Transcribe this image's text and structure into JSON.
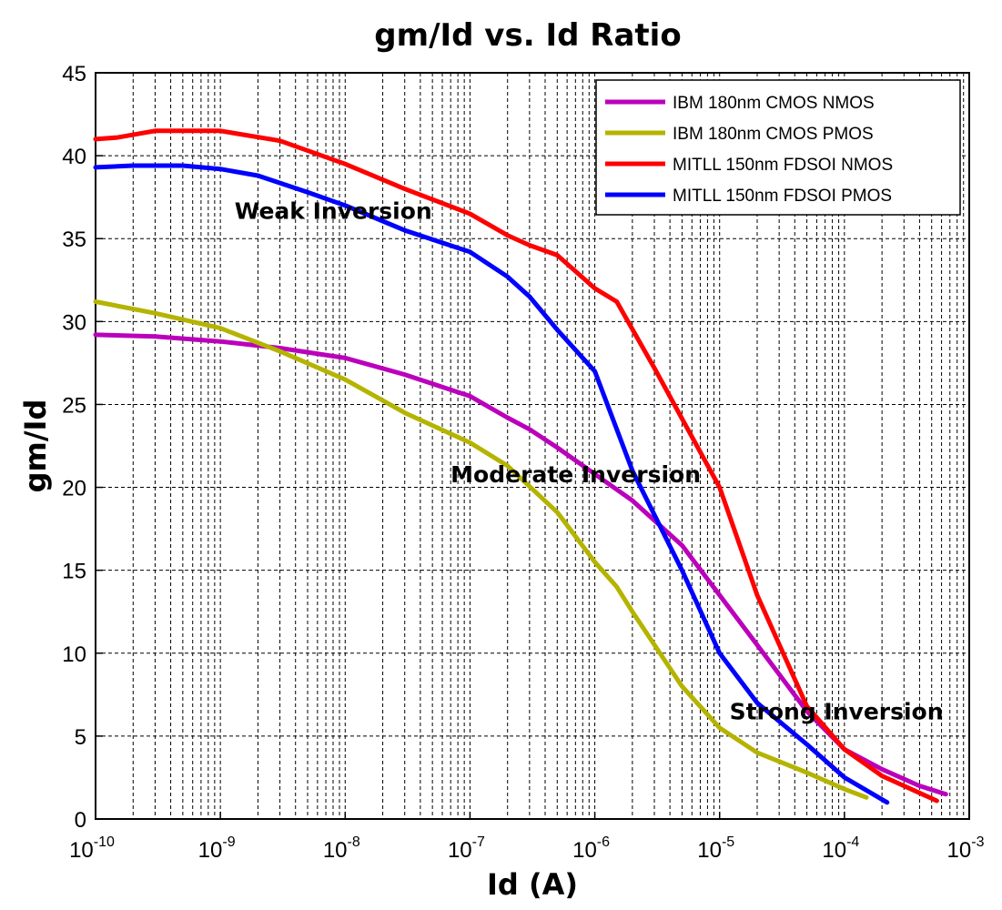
{
  "chart_data": {
    "type": "line",
    "title": "gm/Id vs. Id Ratio",
    "xlabel": "Id (A)",
    "ylabel": "gm/Id",
    "xscale": "log",
    "xlim": [
      1e-10,
      0.001
    ],
    "ylim": [
      0,
      45
    ],
    "x_ticks": [
      {
        "base": "10",
        "exp": "-10"
      },
      {
        "base": "10",
        "exp": "-9"
      },
      {
        "base": "10",
        "exp": "-8"
      },
      {
        "base": "10",
        "exp": "-7"
      },
      {
        "base": "10",
        "exp": "-6"
      },
      {
        "base": "10",
        "exp": "-5"
      },
      {
        "base": "10",
        "exp": "-4"
      },
      {
        "base": "10",
        "exp": "-3"
      }
    ],
    "y_ticks": [
      "0",
      "5",
      "10",
      "15",
      "20",
      "25",
      "30",
      "35",
      "40",
      "45"
    ],
    "grid": "on (dashed, major and minor)",
    "legend_position": "top-right",
    "series": [
      {
        "name": "IBM 180nm CMOS NMOS",
        "color": "#bb00bb",
        "points": [
          [
            1e-10,
            29.2
          ],
          [
            3e-10,
            29.1
          ],
          [
            1e-09,
            28.8
          ],
          [
            3e-09,
            28.4
          ],
          [
            1e-08,
            27.8
          ],
          [
            3e-08,
            26.8
          ],
          [
            1e-07,
            25.5
          ],
          [
            2e-07,
            24.2
          ],
          [
            3e-07,
            23.5
          ],
          [
            5e-07,
            22.4
          ],
          [
            1e-06,
            20.8
          ],
          [
            2e-06,
            19.2
          ],
          [
            5e-06,
            16.5
          ],
          [
            1e-05,
            13.5
          ],
          [
            2e-05,
            10.5
          ],
          [
            5e-05,
            6.5
          ],
          [
            0.0001,
            4.2
          ],
          [
            0.0002,
            3.0
          ],
          [
            0.0004,
            2.0
          ],
          [
            0.00065,
            1.5
          ]
        ]
      },
      {
        "name": "IBM 180nm CMOS PMOS",
        "color": "#b4b400",
        "points": [
          [
            1e-10,
            31.2
          ],
          [
            3e-10,
            30.5
          ],
          [
            1e-09,
            29.6
          ],
          [
            3e-09,
            28.2
          ],
          [
            1e-08,
            26.5
          ],
          [
            3e-08,
            24.5
          ],
          [
            1e-07,
            22.7
          ],
          [
            2e-07,
            21.3
          ],
          [
            5e-07,
            18.5
          ],
          [
            1e-06,
            15.5
          ],
          [
            1.5e-06,
            14.0
          ],
          [
            2e-06,
            12.5
          ],
          [
            5e-06,
            8.0
          ],
          [
            1e-05,
            5.5
          ],
          [
            2e-05,
            4.0
          ],
          [
            5e-05,
            2.8
          ],
          [
            0.0001,
            1.8
          ],
          [
            0.00015,
            1.3
          ]
        ]
      },
      {
        "name": "MITLL 150nm FDSOI NMOS",
        "color": "#ff0000",
        "points": [
          [
            1e-10,
            41.0
          ],
          [
            1.5e-10,
            41.1
          ],
          [
            3e-10,
            41.5
          ],
          [
            1e-09,
            41.5
          ],
          [
            3e-09,
            40.9
          ],
          [
            1e-08,
            39.5
          ],
          [
            3e-08,
            38.0
          ],
          [
            1e-07,
            36.5
          ],
          [
            2e-07,
            35.2
          ],
          [
            3e-07,
            34.6
          ],
          [
            5e-07,
            34.0
          ],
          [
            1e-06,
            32.0
          ],
          [
            1.5e-06,
            31.2
          ],
          [
            3e-06,
            27.2
          ],
          [
            1e-05,
            20.0
          ],
          [
            2e-05,
            13.5
          ],
          [
            5e-05,
            6.8
          ],
          [
            0.0001,
            4.2
          ],
          [
            0.0002,
            2.6
          ],
          [
            0.00055,
            1.1
          ]
        ]
      },
      {
        "name": "MITLL 150nm FDSOI PMOS",
        "color": "#0000ff",
        "points": [
          [
            1e-10,
            39.3
          ],
          [
            2e-10,
            39.4
          ],
          [
            5e-10,
            39.4
          ],
          [
            1e-09,
            39.2
          ],
          [
            2e-09,
            38.8
          ],
          [
            5e-09,
            37.8
          ],
          [
            1e-08,
            37.0
          ],
          [
            3e-08,
            35.5
          ],
          [
            1e-07,
            34.2
          ],
          [
            2e-07,
            32.7
          ],
          [
            3e-07,
            31.5
          ],
          [
            5e-07,
            29.5
          ],
          [
            1e-06,
            27.0
          ],
          [
            2e-06,
            21.0
          ],
          [
            5e-06,
            15.0
          ],
          [
            1e-05,
            10.0
          ],
          [
            2e-05,
            7.0
          ],
          [
            5e-05,
            4.5
          ],
          [
            0.0001,
            2.5
          ],
          [
            0.00022,
            1.0
          ]
        ]
      }
    ],
    "annotations": [
      {
        "text": "Weak Inversion",
        "x": 1.3e-09,
        "y": 36.2
      },
      {
        "text": "Moderate Inversion",
        "x": 7e-08,
        "y": 20.3
      },
      {
        "text": "Strong Inversion",
        "x": 1.2e-05,
        "y": 6.0
      }
    ]
  }
}
